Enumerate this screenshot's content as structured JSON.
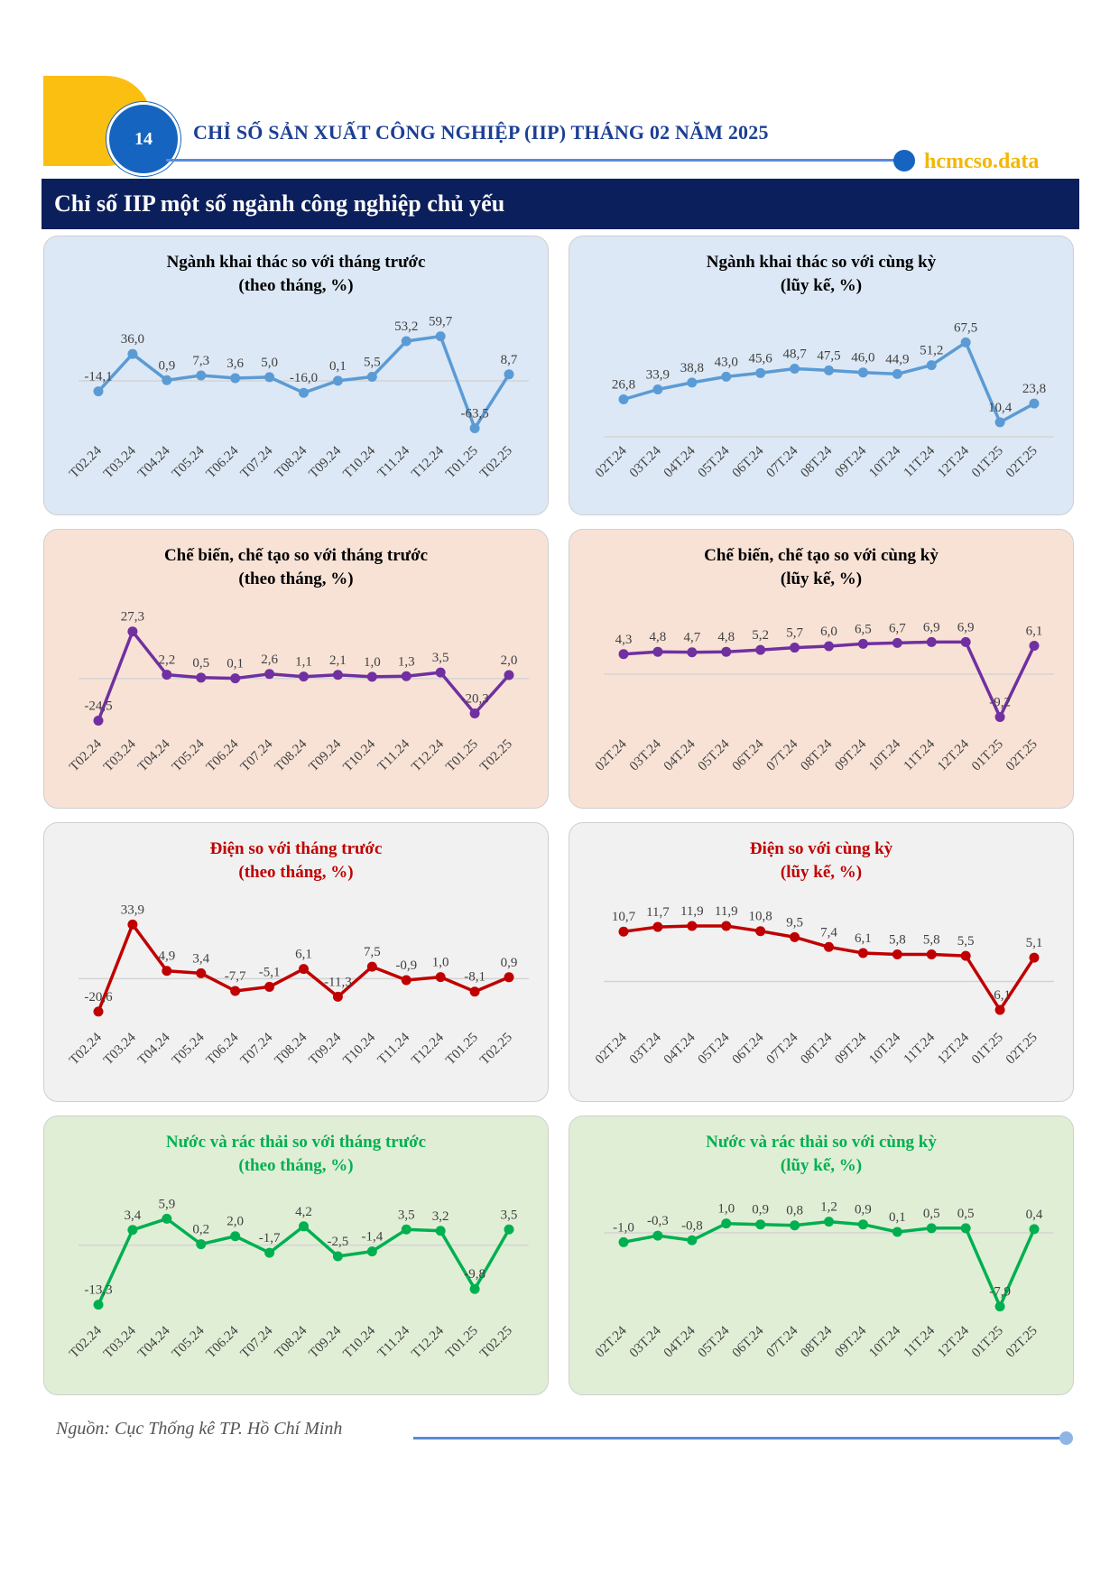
{
  "header": {
    "page_number": "14",
    "title": "CHỈ SỐ SẢN XUẤT CÔNG NGHIỆP (IIP) THÁNG 02 NĂM 2025",
    "site": "hcmcso.data",
    "section_title": "Chỉ số IIP một số ngành công nghiệp chủ yếu"
  },
  "footer": {
    "source": "Nguồn: Cục Thống kê TP. Hồ Chí Minh"
  },
  "colors": {
    "blue_line": "#5b9bd5",
    "purple_line": "#7030a0",
    "red_line": "#c00000",
    "green_line": "#00b050",
    "blue_bg": "#dce8f5",
    "orange_bg": "#f8e2d6",
    "gray_bg": "#f1f1f1",
    "green_bg": "#e1eed6",
    "title_dark": "#000000",
    "title_red": "#c00000",
    "title_green": "#00b050"
  },
  "chart_data": [
    {
      "type": "line",
      "title": [
        "Ngành khai thác so với tháng trước",
        "(theo tháng, %)"
      ],
      "categories": [
        "T02.24",
        "T03.24",
        "T04.24",
        "T05.24",
        "T06.24",
        "T07.24",
        "T08.24",
        "T09.24",
        "T10.24",
        "T11.24",
        "T12.24",
        "T01.25",
        "T02.25"
      ],
      "values": [
        -14.1,
        36.0,
        0.9,
        7.3,
        3.6,
        5.0,
        -16.0,
        0.1,
        5.5,
        53.2,
        59.7,
        -63.5,
        8.7
      ],
      "labels": [
        "-14,1",
        "36,0",
        "0,9",
        "7,3",
        "3,6",
        "5,0",
        "-16,0",
        "0,1",
        "5,5",
        "53,2",
        "59,7",
        "-63,5",
        "8,7"
      ],
      "ylim": [
        -75,
        75
      ],
      "color": "#5b9bd5",
      "bg": "#dce8f5",
      "title_color": "#000000",
      "grid": "zero-line"
    },
    {
      "type": "line",
      "title": [
        "Ngành khai thác so với cùng kỳ",
        "(lũy kế, %)"
      ],
      "categories": [
        "02T.24",
        "03T.24",
        "04T.24",
        "05T.24",
        "06T.24",
        "07T.24",
        "08T.24",
        "09T.24",
        "10T.24",
        "11T.24",
        "12T.24",
        "01T.25",
        "02T.25"
      ],
      "values": [
        26.8,
        33.9,
        38.8,
        43.0,
        45.6,
        48.7,
        47.5,
        46.0,
        44.9,
        51.2,
        67.5,
        10.4,
        23.8
      ],
      "labels": [
        "26,8",
        "33,9",
        "38,8",
        "43,0",
        "45,6",
        "48,7",
        "47,5",
        "46,0",
        "44,9",
        "51,2",
        "67,5",
        "10,4",
        "23,8"
      ],
      "ylim": [
        0,
        80
      ],
      "color": "#5b9bd5",
      "bg": "#dce8f5",
      "title_color": "#000000",
      "grid": "zero-line"
    },
    {
      "type": "line",
      "title": [
        "Chế biến, chế tạo so với tháng trước",
        "(theo tháng, %)"
      ],
      "categories": [
        "T02.24",
        "T03.24",
        "T04.24",
        "T05.24",
        "T06.24",
        "T07.24",
        "T08.24",
        "T09.24",
        "T10.24",
        "T11.24",
        "T12.24",
        "T01.25",
        "T02.25"
      ],
      "values": [
        -24.5,
        27.3,
        2.2,
        0.5,
        0.1,
        2.6,
        1.1,
        2.1,
        1.0,
        1.3,
        3.5,
        -20.3,
        2.0
      ],
      "labels": [
        "-24,5",
        "27,3",
        "2,2",
        "0,5",
        "0,1",
        "2,6",
        "1,1",
        "2,1",
        "1,0",
        "1,3",
        "3,5",
        "-20,3",
        "2,0"
      ],
      "ylim": [
        -30,
        35
      ],
      "color": "#7030a0",
      "bg": "#f8e2d6",
      "title_color": "#000000",
      "grid": "zero-line"
    },
    {
      "type": "line",
      "title": [
        "Chế biến, chế tạo so với cùng kỳ",
        "(lũy kế, %)"
      ],
      "categories": [
        "02T.24",
        "03T.24",
        "04T.24",
        "05T.24",
        "06T.24",
        "07T.24",
        "08T.24",
        "09T.24",
        "10T.24",
        "11T.24",
        "12T.24",
        "01T.25",
        "02T.25"
      ],
      "values": [
        4.3,
        4.8,
        4.7,
        4.8,
        5.2,
        5.7,
        6.0,
        6.5,
        6.7,
        6.9,
        6.9,
        -9.2,
        6.1
      ],
      "labels": [
        "4,3",
        "4,8",
        "4,7",
        "4,8",
        "5,2",
        "5,7",
        "6,0",
        "6,5",
        "6,7",
        "6,9",
        "6,9",
        "-9,2",
        "6,1"
      ],
      "ylim": [
        -12,
        12
      ],
      "color": "#7030a0",
      "bg": "#f8e2d6",
      "title_color": "#000000",
      "grid": "zero-line"
    },
    {
      "type": "line",
      "title": [
        "Điện so với tháng trước",
        "(theo tháng, %)"
      ],
      "categories": [
        "T02.24",
        "T03.24",
        "T04.24",
        "T05.24",
        "T06.24",
        "T07.24",
        "T08.24",
        "T09.24",
        "T10.24",
        "T11.24",
        "T12.24",
        "T01.25",
        "T02.25"
      ],
      "values": [
        -20.6,
        33.9,
        4.9,
        3.4,
        -7.7,
        -5.1,
        6.1,
        -11.3,
        7.5,
        -0.9,
        1.0,
        -8.1,
        0.9
      ],
      "labels": [
        "-20,6",
        "33,9",
        "4,9",
        "3,4",
        "-7,7",
        "-5,1",
        "6,1",
        "-11,3",
        "7,5",
        "-0,9",
        "1,0",
        "-8,1",
        "0,9"
      ],
      "ylim": [
        -28,
        42
      ],
      "color": "#c00000",
      "bg": "#f1f1f1",
      "title_color": "#c00000",
      "grid": "zero-line"
    },
    {
      "type": "line",
      "title": [
        "Điện so với cùng kỳ",
        "(lũy kế, %)"
      ],
      "categories": [
        "02T.24",
        "03T.24",
        "04T.24",
        "05T.24",
        "06T.24",
        "07T.24",
        "08T.24",
        "09T.24",
        "10T.24",
        "11T.24",
        "12T.24",
        "01T.25",
        "02T.25"
      ],
      "values": [
        10.7,
        11.7,
        11.9,
        11.9,
        10.8,
        9.5,
        7.4,
        6.1,
        5.8,
        5.8,
        5.5,
        -6.1,
        5.1
      ],
      "labels": [
        "10,7",
        "11,7",
        "11,9",
        "11,9",
        "10,8",
        "9,5",
        "7,4",
        "6,1",
        "5,8",
        "5,8",
        "5,5",
        "-6,1",
        "5,1"
      ],
      "ylim": [
        -9,
        15
      ],
      "color": "#c00000",
      "bg": "#f1f1f1",
      "title_color": "#c00000",
      "grid": "zero-line"
    },
    {
      "type": "line",
      "title": [
        "Nước và rác thải so với tháng trước",
        "(theo tháng, %)"
      ],
      "categories": [
        "T02.24",
        "T03.24",
        "T04.24",
        "T05.24",
        "T06.24",
        "T07.24",
        "T08.24",
        "T09.24",
        "T10.24",
        "T11.24",
        "T12.24",
        "T01.25",
        "T02.25"
      ],
      "values": [
        -13.3,
        3.4,
        5.9,
        0.2,
        2.0,
        -1.7,
        4.2,
        -2.5,
        -1.4,
        3.5,
        3.2,
        -9.8,
        3.5
      ],
      "labels": [
        "-13,3",
        "3,4",
        "5,9",
        "0,2",
        "2,0",
        "-1,7",
        "4,2",
        "-2,5",
        "-1,4",
        "3,5",
        "3,2",
        "-9,8",
        "3,5"
      ],
      "ylim": [
        -16,
        9
      ],
      "color": "#00b050",
      "bg": "#e1eed6",
      "title_color": "#00b050",
      "grid": "zero-line"
    },
    {
      "type": "line",
      "title": [
        "Nước và rác thải so với cùng kỳ",
        "(lũy kế, %)"
      ],
      "categories": [
        "02T.24",
        "03T.24",
        "04T.24",
        "05T.24",
        "06T.24",
        "07T.24",
        "08T.24",
        "09T.24",
        "10T.24",
        "11T.24",
        "12T.24",
        "01T.25",
        "02T.25"
      ],
      "values": [
        -1.0,
        -0.3,
        -0.8,
        1.0,
        0.9,
        0.8,
        1.2,
        0.9,
        0.1,
        0.5,
        0.5,
        -7.9,
        0.4
      ],
      "labels": [
        "-1,0",
        "-0,3",
        "-0,8",
        "1,0",
        "0,9",
        "0,8",
        "1,2",
        "0,9",
        "0,1",
        "0,5",
        "0,5",
        "-7,9",
        "0,4"
      ],
      "ylim": [
        -9,
        3
      ],
      "color": "#00b050",
      "bg": "#e1eed6",
      "title_color": "#00b050",
      "grid": "zero-line"
    }
  ]
}
